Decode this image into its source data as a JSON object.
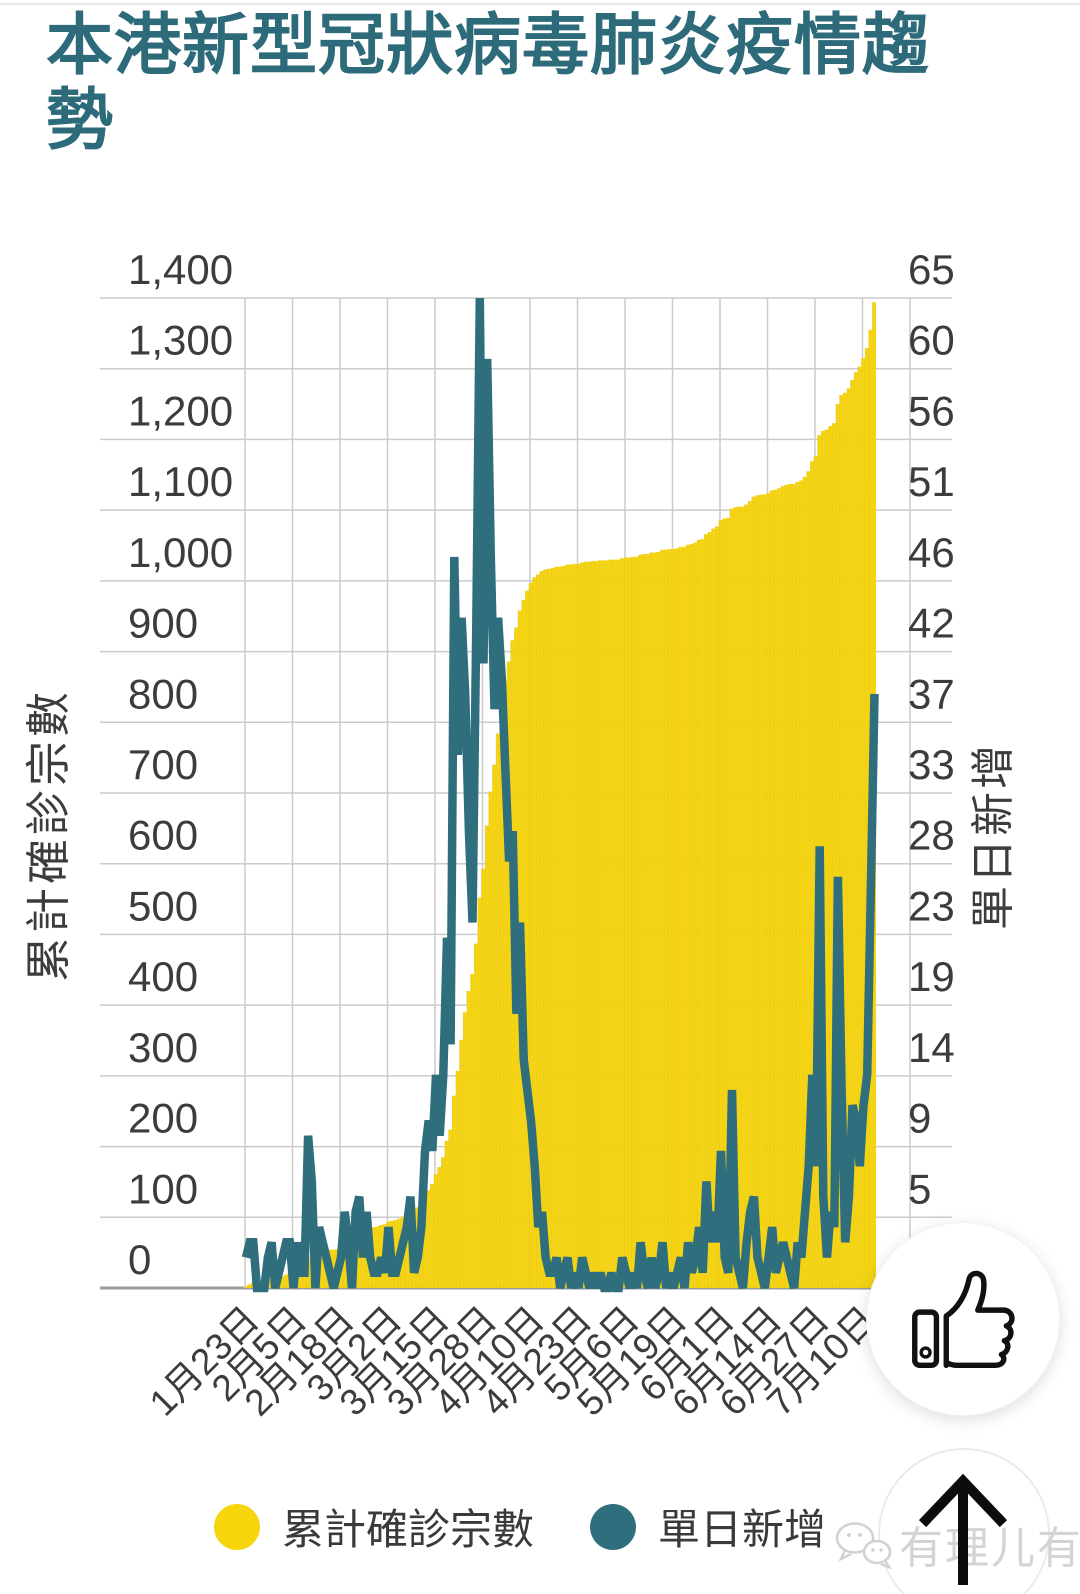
{
  "page": {
    "title": "本港新型冠狀病毒肺炎疫情趨勢"
  },
  "chart_data": {
    "type": "combo",
    "title": "本港新型冠狀病毒肺炎疫情趨勢",
    "grid": true,
    "legend_position": "bottom",
    "x_start_label": "1月23日",
    "x_tick_step_days": 13,
    "x_tick_labels": [
      "1月23日",
      "2月5日",
      "2月18日",
      "3月2日",
      "3月15日",
      "3月28日",
      "4月10日",
      "4月23日",
      "5月6日",
      "5月19日",
      "6月1日",
      "6月14日",
      "6月27日",
      "7月10日"
    ],
    "left_axis": {
      "title": "累計確診宗數",
      "min": 0,
      "max": 1400,
      "tick_labels": [
        "1,400",
        "1,300",
        "1,200",
        "1,100",
        "1,000",
        "900",
        "800",
        "700",
        "600",
        "500",
        "400",
        "300",
        "200",
        "100",
        "0"
      ]
    },
    "right_axis": {
      "title": "單日新增",
      "min": 0,
      "max": 65,
      "tick_labels": [
        "65",
        "60",
        "56",
        "51",
        "46",
        "42",
        "37",
        "33",
        "28",
        "23",
        "19",
        "14",
        "9",
        "5"
      ]
    },
    "series": [
      {
        "name": "累計確診宗數",
        "type": "area-bars",
        "axis": "left",
        "color": "#F6D50C",
        "note": "values are the cumulative sum of the 單日新增 daily series; plateau ~1,020 mid-April, final ~1,394"
      },
      {
        "name": "單日新增",
        "type": "line",
        "axis": "right",
        "color": "#2F6E7C",
        "values": [
          2,
          3,
          3,
          0,
          0,
          0,
          2,
          3,
          0,
          1,
          2,
          3,
          3,
          0,
          3,
          1,
          1,
          10,
          7,
          0,
          4,
          3,
          2,
          1,
          0,
          1,
          2,
          5,
          3,
          0,
          5,
          6,
          2,
          5,
          2,
          1,
          1,
          2,
          1,
          4,
          1,
          1,
          2,
          3,
          4,
          6,
          1,
          2,
          4,
          9,
          11,
          9,
          14,
          10,
          14,
          23,
          16,
          48,
          35,
          44,
          39,
          30,
          24,
          43,
          65,
          41,
          61,
          48,
          38,
          44,
          40,
          34,
          28,
          30,
          18,
          24,
          15,
          13,
          11,
          8,
          4,
          5,
          2,
          1,
          1,
          2,
          0,
          1,
          2,
          0,
          1,
          0,
          2,
          1,
          0,
          1,
          0,
          1,
          0,
          0,
          1,
          0,
          0,
          2,
          1,
          0,
          1,
          0,
          3,
          1,
          0,
          2,
          0,
          1,
          3,
          0,
          1,
          0,
          1,
          2,
          0,
          3,
          1,
          2,
          4,
          1,
          7,
          3,
          5,
          3,
          9,
          2,
          1,
          13,
          2,
          1,
          0,
          3,
          5,
          6,
          2,
          1,
          0,
          2,
          4,
          1,
          2,
          3,
          2,
          1,
          0,
          3,
          2,
          5,
          8,
          14,
          8,
          29,
          6,
          2,
          5,
          4,
          27,
          13,
          3,
          6,
          12,
          11,
          8,
          12,
          14,
          26,
          39
        ]
      }
    ]
  },
  "legend": {
    "items": [
      {
        "label": "累計確診宗數",
        "color": "#F6D50C"
      },
      {
        "label": "單日新增",
        "color": "#2F6E7C"
      }
    ]
  },
  "buttons": {
    "thumbs_up_icon": "thumbs-up-icon",
    "scroll_to_top_icon": "up-arrow-icon"
  },
  "watermark": {
    "icon": "wechat-icon",
    "text": "有理儿有面"
  },
  "colors": {
    "title": "#2D6B7A",
    "accent_yellow": "#F6D50C",
    "accent_teal": "#2F6E7C",
    "axis_text": "#3C3C3C",
    "grid": "#CBCBCB",
    "axis_line": "#9C9C9C",
    "watermark": "#D2D2D2"
  }
}
